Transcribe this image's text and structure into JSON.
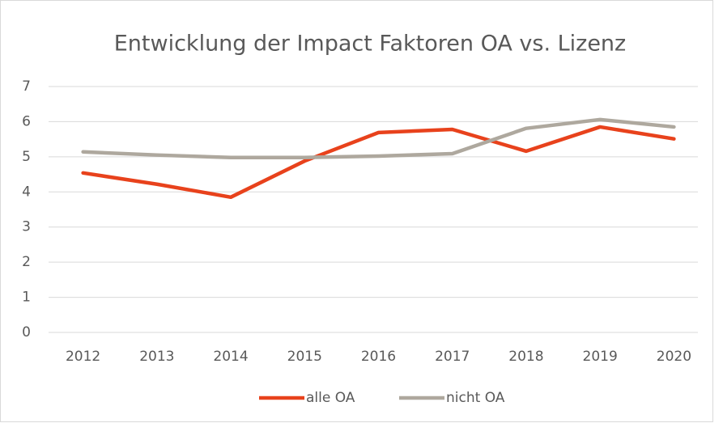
{
  "chart_data": {
    "type": "line",
    "title": "Entwicklung der Impact Faktoren OA vs. Lizenz",
    "categories": [
      "2012",
      "2013",
      "2014",
      "2015",
      "2016",
      "2017",
      "2018",
      "2019",
      "2020"
    ],
    "series": [
      {
        "name": "alle OA",
        "color": "#e8421c",
        "values": [
          4.54,
          4.22,
          3.85,
          4.88,
          5.69,
          5.78,
          5.16,
          5.85,
          5.51
        ]
      },
      {
        "name": "nicht OA",
        "color": "#aea89e",
        "values": [
          5.14,
          5.05,
          4.98,
          4.98,
          5.02,
          5.09,
          5.81,
          6.06,
          5.85
        ]
      }
    ],
    "ylim": [
      0,
      7
    ],
    "yticks": [
      0,
      1,
      2,
      3,
      4,
      5,
      6,
      7
    ],
    "grid": true,
    "legend": "bottom"
  }
}
